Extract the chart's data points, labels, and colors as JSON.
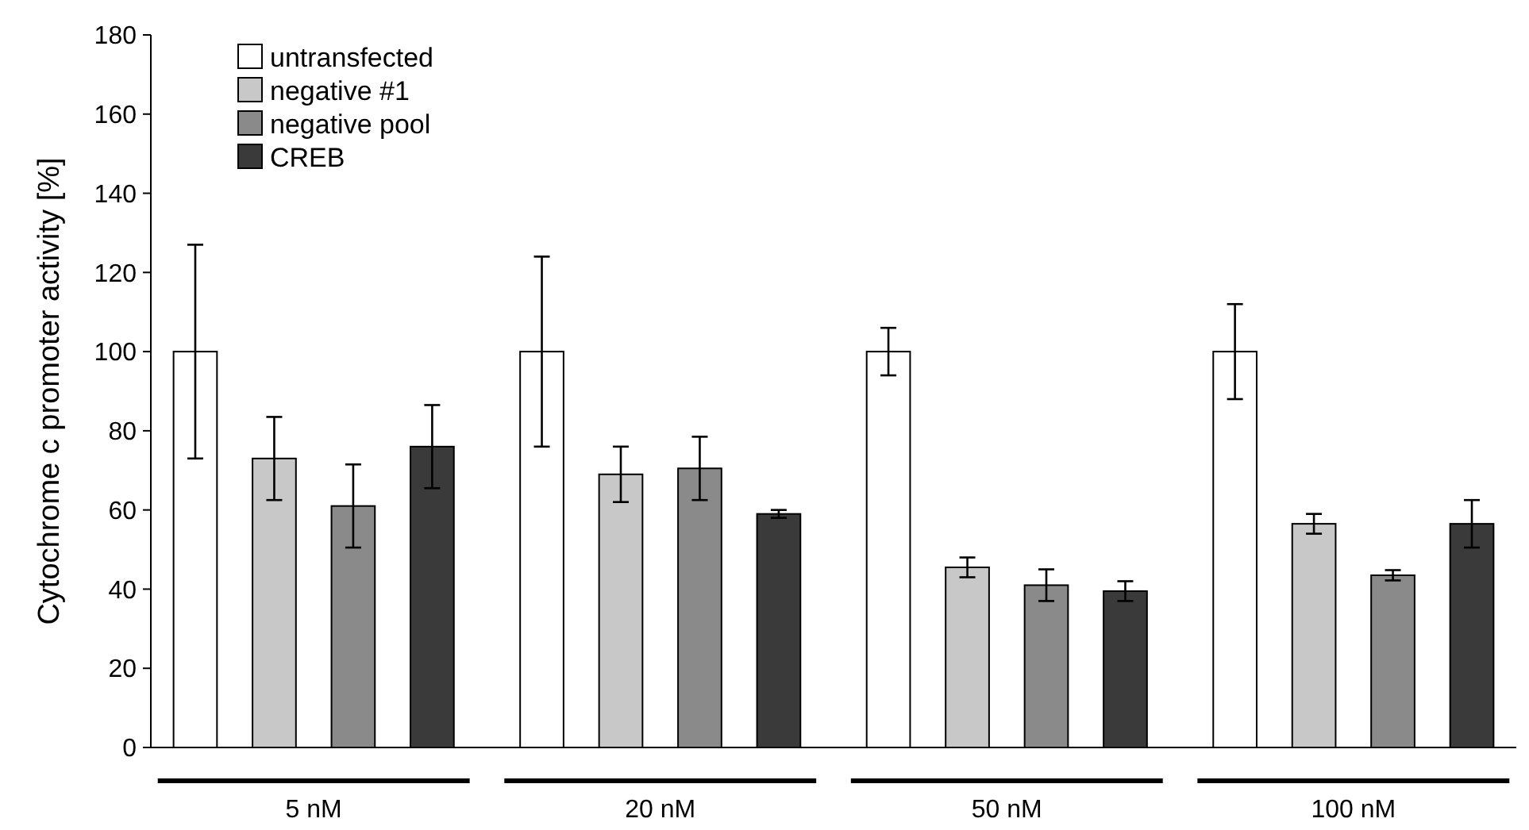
{
  "chart_data": {
    "type": "bar",
    "ylabel": "Cytochrome c promoter activity  [%]",
    "categories": [
      "5 nM",
      "20 nM",
      "50 nM",
      "100 nM"
    ],
    "ylim": [
      0,
      180
    ],
    "yticks": [
      0,
      20,
      40,
      60,
      80,
      100,
      120,
      140,
      160,
      180
    ],
    "grid": false,
    "legend": "top left",
    "series": [
      {
        "name": "untransfected",
        "color": "#ffffff",
        "values": [
          100,
          100,
          100,
          100
        ],
        "errors": [
          27,
          24,
          6,
          12
        ]
      },
      {
        "name": "negative #1",
        "color": "#c8c8c8",
        "values": [
          73,
          69,
          45.5,
          56.5
        ],
        "errors": [
          10.5,
          7,
          2.5,
          2.5
        ]
      },
      {
        "name": "negative pool",
        "color": "#8a8a8a",
        "values": [
          61,
          70.5,
          41,
          43.5
        ],
        "errors": [
          10.5,
          8,
          4,
          1.3
        ]
      },
      {
        "name": "CREB",
        "color": "#3a3a3a",
        "values": [
          76,
          59,
          39.5,
          56.5
        ],
        "errors": [
          10.5,
          1,
          2.5,
          6
        ]
      }
    ]
  }
}
